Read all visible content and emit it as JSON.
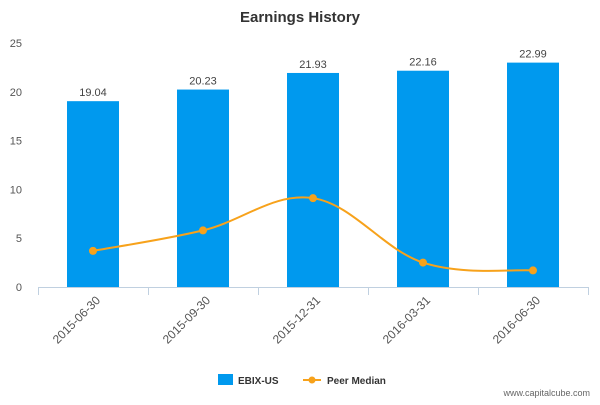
{
  "chart_data": {
    "type": "bar",
    "title": "Earnings History",
    "categories": [
      "2015-06-30",
      "2015-09-30",
      "2015-12-31",
      "2016-03-31",
      "2016-06-30"
    ],
    "series": [
      {
        "name": "EBIX-US",
        "type": "bar",
        "color": "#0099ee",
        "values": [
          19.04,
          20.23,
          21.93,
          22.16,
          22.99
        ],
        "data_labels": [
          "19.04",
          "20.23",
          "21.93",
          "22.16",
          "22.99"
        ]
      },
      {
        "name": "Peer Median",
        "type": "line",
        "color": "#f7a21b",
        "values": [
          3.7,
          5.8,
          9.1,
          2.5,
          1.7
        ]
      }
    ],
    "xlabel": "",
    "ylabel": "",
    "ylim": [
      0,
      25
    ],
    "yticks": [
      0,
      5,
      10,
      15,
      20,
      25
    ],
    "grid": false,
    "legend_position": "bottom-center",
    "footer": "www.capitalcube.com"
  }
}
